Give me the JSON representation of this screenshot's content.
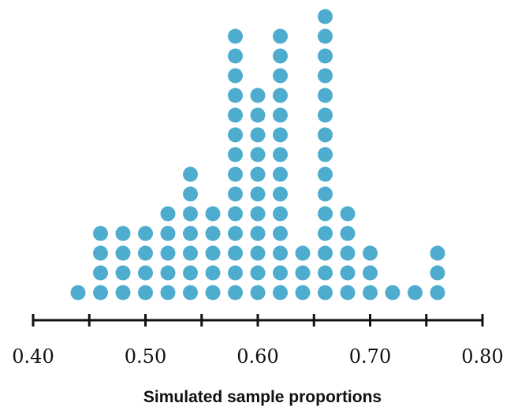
{
  "chart_data": {
    "type": "dotplot",
    "xlabel": "Simulated sample proportions",
    "xlim": [
      0.4,
      0.8
    ],
    "ticks": [
      "0.40",
      "0.50",
      "0.60",
      "0.70",
      "0.80"
    ],
    "tick_values": [
      0.4,
      0.45,
      0.5,
      0.55,
      0.6,
      0.65,
      0.7,
      0.75,
      0.8
    ],
    "labeled_ticks": [
      0.4,
      0.5,
      0.6,
      0.7,
      0.8
    ],
    "dot_color": "#4EADCE",
    "axis_color": "#111111",
    "counts": [
      {
        "x": 0.44,
        "count": 1
      },
      {
        "x": 0.46,
        "count": 4
      },
      {
        "x": 0.48,
        "count": 4
      },
      {
        "x": 0.5,
        "count": 4
      },
      {
        "x": 0.52,
        "count": 5
      },
      {
        "x": 0.54,
        "count": 7
      },
      {
        "x": 0.56,
        "count": 5
      },
      {
        "x": 0.58,
        "count": 14
      },
      {
        "x": 0.6,
        "count": 11
      },
      {
        "x": 0.62,
        "count": 14
      },
      {
        "x": 0.64,
        "count": 3
      },
      {
        "x": 0.66,
        "count": 15
      },
      {
        "x": 0.68,
        "count": 5
      },
      {
        "x": 0.7,
        "count": 3
      },
      {
        "x": 0.72,
        "count": 1
      },
      {
        "x": 0.74,
        "count": 1
      },
      {
        "x": 0.76,
        "count": 3
      }
    ]
  }
}
